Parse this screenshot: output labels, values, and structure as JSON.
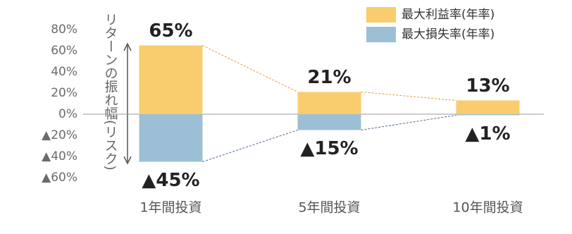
{
  "chart_data": {
    "type": "bar",
    "y_label": "リターンの振れ幅(リスク)",
    "categories": [
      "1年間投資",
      "5年間投資",
      "10年間投資"
    ],
    "series": [
      {
        "name": "最大利益率(年率)",
        "color": "#f9cc6e",
        "values": [
          65,
          21,
          13
        ],
        "value_labels": [
          "65%",
          "21%",
          "13%"
        ]
      },
      {
        "name": "最大損失率(年率)",
        "color": "#9dbfd5",
        "values": [
          -45,
          -15,
          -1
        ],
        "value_labels": [
          "▲45%",
          "▲15%",
          "▲1%"
        ]
      }
    ],
    "ylim": [
      -60,
      80
    ],
    "yticks": [
      {
        "value": 80,
        "label": "80%"
      },
      {
        "value": 60,
        "label": "60%"
      },
      {
        "value": 40,
        "label": "40%"
      },
      {
        "value": 20,
        "label": "20%"
      },
      {
        "value": 0,
        "label": "0%"
      },
      {
        "value": -20,
        "label": "▲20%"
      },
      {
        "value": -40,
        "label": "▲40%"
      },
      {
        "value": -60,
        "label": "▲60%"
      }
    ],
    "legend": "top-right"
  }
}
